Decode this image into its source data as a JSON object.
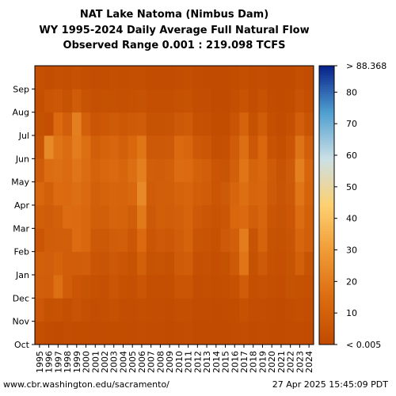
{
  "titles": {
    "line1": "NAT Lake Natoma (Nimbus Dam)",
    "line2": "WY 1995-2024 Daily Average Full Natural Flow",
    "line3": "Observed Range 0.001 : 219.098 TCFS"
  },
  "footer": {
    "source": "www.cbr.washington.edu/sacramento/",
    "timestamp": "27 Apr 2025 15:45:09 PDT"
  },
  "chart_data": {
    "type": "heatmap",
    "x": [
      "1995",
      "1996",
      "1997",
      "1998",
      "1999",
      "2000",
      "2001",
      "2002",
      "2003",
      "2004",
      "2005",
      "2006",
      "2007",
      "2008",
      "2009",
      "2010",
      "2011",
      "2012",
      "2013",
      "2014",
      "2015",
      "2016",
      "2017",
      "2018",
      "2019",
      "2020",
      "2021",
      "2022",
      "2023",
      "2024"
    ],
    "y": [
      "Oct",
      "Nov",
      "Dec",
      "Jan",
      "Feb",
      "Mar",
      "Apr",
      "May",
      "Jun",
      "Jul",
      "Aug",
      "Sep"
    ],
    "y_order": "bottom-to-top",
    "zlim": [
      0.005,
      88.368
    ],
    "colorbar_ticks": [
      10,
      20,
      30,
      40,
      50,
      60,
      70,
      80
    ],
    "colorbar_top_label": "> 88.368",
    "colorbar_bottom_label": "< 0.005",
    "colors": [
      "#c04a00",
      "#db6b10",
      "#f09a35",
      "#fdd070",
      "#cce0e6",
      "#4f9fd0",
      "#08218a"
    ],
    "values": [
      [
        2.0,
        6.0,
        9.0,
        10.0,
        5.0,
        9.5,
        13.0,
        8.0,
        4.5,
        3.0,
        2.0,
        2.5
      ],
      [
        1.0,
        3.0,
        8.5,
        9.0,
        8.5,
        8.0,
        10.0,
        15.0,
        24.0,
        2.0,
        5.0,
        1.5
      ],
      [
        0.8,
        3.5,
        16.0,
        11.0,
        9.0,
        10.0,
        14.5,
        16.0,
        17.5,
        14.0,
        6.0,
        2.5
      ],
      [
        1.5,
        2.0,
        8.0,
        8.5,
        9.0,
        15.0,
        14.0,
        14.5,
        15.0,
        9.0,
        3.5,
        2.0
      ],
      [
        1.2,
        4.0,
        5.0,
        8.5,
        15.0,
        14.5,
        16.0,
        18.0,
        20.0,
        21.0,
        8.0,
        3.0
      ],
      [
        1.0,
        2.5,
        4.0,
        9.0,
        13.0,
        13.0,
        14.0,
        15.0,
        16.0,
        10.0,
        4.0,
        2.0
      ],
      [
        1.0,
        1.5,
        3.0,
        5.0,
        6.5,
        9.5,
        10.0,
        11.0,
        9.5,
        5.0,
        2.5,
        1.5
      ],
      [
        1.0,
        2.0,
        2.5,
        4.5,
        6.5,
        9.5,
        11.0,
        13.0,
        11.0,
        6.0,
        3.0,
        1.5
      ],
      [
        1.2,
        3.0,
        5.0,
        6.5,
        8.5,
        11.5,
        12.0,
        14.0,
        12.5,
        7.5,
        3.0,
        2.0
      ],
      [
        1.0,
        1.5,
        3.0,
        5.0,
        9.5,
        11.0,
        11.5,
        12.0,
        10.0,
        6.0,
        2.5,
        1.5
      ],
      [
        1.0,
        1.5,
        2.5,
        3.5,
        5.5,
        8.5,
        13.0,
        16.0,
        13.0,
        7.5,
        3.0,
        2.0
      ],
      [
        1.5,
        2.0,
        5.0,
        10.0,
        14.0,
        19.0,
        24.0,
        21.0,
        18.0,
        8.0,
        3.5,
        2.0
      ],
      [
        1.0,
        1.5,
        2.0,
        3.5,
        5.0,
        6.5,
        8.0,
        9.5,
        6.5,
        3.5,
        2.0,
        1.0
      ],
      [
        1.0,
        1.5,
        2.0,
        4.0,
        7.0,
        9.5,
        9.5,
        8.5,
        6.5,
        3.5,
        2.0,
        1.0
      ],
      [
        0.8,
        1.0,
        2.0,
        3.0,
        6.0,
        8.5,
        9.5,
        10.0,
        7.0,
        4.0,
        2.0,
        1.0
      ],
      [
        1.0,
        2.0,
        5.0,
        7.5,
        8.5,
        10.0,
        11.0,
        15.0,
        14.0,
        6.5,
        3.0,
        1.5
      ],
      [
        1.5,
        2.0,
        5.0,
        8.5,
        11.0,
        11.5,
        12.0,
        14.5,
        12.5,
        7.5,
        3.5,
        2.0
      ],
      [
        0.8,
        1.0,
        1.5,
        2.5,
        4.5,
        7.0,
        9.5,
        10.5,
        6.5,
        3.0,
        1.5,
        1.0
      ],
      [
        0.8,
        1.0,
        2.0,
        3.0,
        4.0,
        5.5,
        8.0,
        9.0,
        5.5,
        2.5,
        1.5,
        0.8
      ],
      [
        0.5,
        0.8,
        1.5,
        2.0,
        3.0,
        4.0,
        5.0,
        5.0,
        2.0,
        1.2,
        0.8,
        0.5
      ],
      [
        0.6,
        1.0,
        2.0,
        3.0,
        7.0,
        5.5,
        7.0,
        4.5,
        2.5,
        1.2,
        0.8,
        0.6
      ],
      [
        1.0,
        1.2,
        3.0,
        7.0,
        9.0,
        13.0,
        12.0,
        10.0,
        8.0,
        4.5,
        2.0,
        1.2
      ],
      [
        1.5,
        3.0,
        8.0,
        18.0,
        20.0,
        14.0,
        16.0,
        18.0,
        16.0,
        11.0,
        4.0,
        2.0
      ],
      [
        0.8,
        1.5,
        2.0,
        3.0,
        4.0,
        9.0,
        12.0,
        11.0,
        6.0,
        3.0,
        1.5,
        1.0
      ],
      [
        1.0,
        1.5,
        3.0,
        7.0,
        11.0,
        12.0,
        12.5,
        13.0,
        13.0,
        8.0,
        3.5,
        1.5
      ],
      [
        0.8,
        1.0,
        2.0,
        3.0,
        3.5,
        5.0,
        7.0,
        7.5,
        4.0,
        2.0,
        1.0,
        0.8
      ],
      [
        0.5,
        0.8,
        1.5,
        2.5,
        3.0,
        4.0,
        4.5,
        4.0,
        2.0,
        1.0,
        0.6,
        0.5
      ],
      [
        1.0,
        1.5,
        3.5,
        4.0,
        4.5,
        5.5,
        6.5,
        7.0,
        5.0,
        2.5,
        1.2,
        0.8
      ],
      [
        1.0,
        2.0,
        3.0,
        10.0,
        12.0,
        15.0,
        18.0,
        21.0,
        17.0,
        9.0,
        4.0,
        2.0
      ],
      [
        0.8,
        1.5,
        2.5,
        4.0,
        9.0,
        10.0,
        11.0,
        12.0,
        9.0,
        4.5,
        2.0,
        1.0
      ]
    ]
  }
}
